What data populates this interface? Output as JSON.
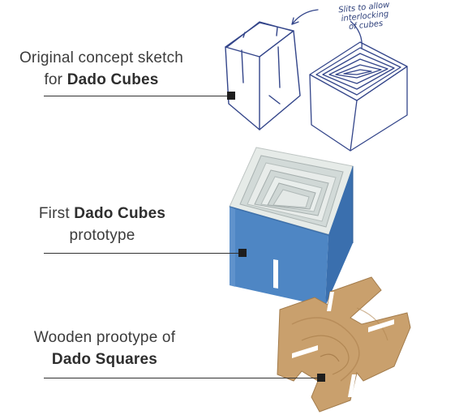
{
  "captions": [
    {
      "line1_pre": "Original concept sketch",
      "line2_pre": "for ",
      "line2_bold": "Dado Cubes"
    },
    {
      "line1_pre": "First ",
      "line1_bold": "Dado Cubes",
      "line2_pre": "prototype"
    },
    {
      "line1_pre": "Wooden prootype of",
      "line2_bold": "Dado Squares"
    }
  ],
  "sketch_note": {
    "line1": "Slits to allow",
    "line2": "interlocking",
    "line3": "of cubes"
  },
  "colors": {
    "sketch_ink": "#33458a",
    "cube_blue": "#4e86c4",
    "wood": "#c9a06d",
    "leader": "#333333"
  }
}
